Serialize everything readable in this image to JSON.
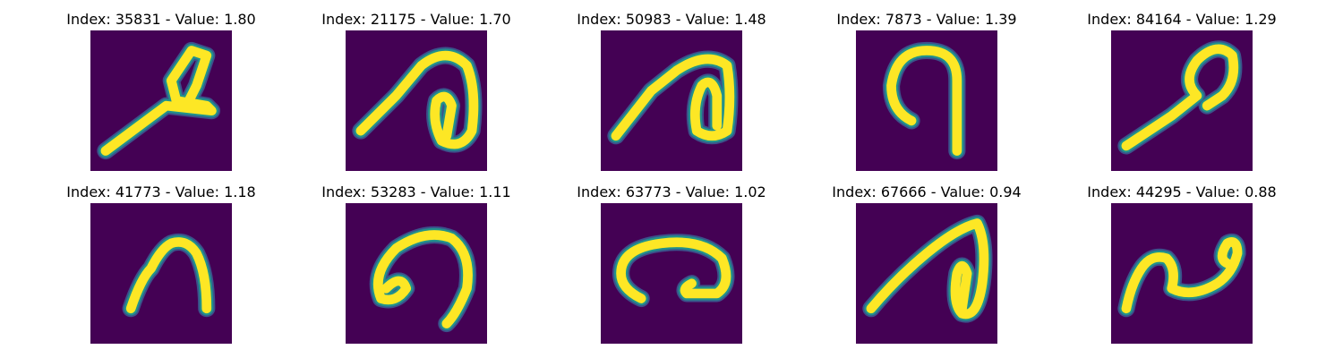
{
  "colors": {
    "background": "#440154",
    "stroke_core": "#fde725",
    "stroke_mid": "#21918c",
    "stroke_edge": "#3b528b"
  },
  "samples": [
    {
      "title": "Index: 35831 - Value: 1.80",
      "index": 35831,
      "value": 1.8
    },
    {
      "title": "Index: 21175 - Value: 1.70",
      "index": 21175,
      "value": 1.7
    },
    {
      "title": "Index: 50983 - Value: 1.48",
      "index": 50983,
      "value": 1.48
    },
    {
      "title": "Index: 7873 - Value: 1.39",
      "index": 7873,
      "value": 1.39
    },
    {
      "title": "Index: 84164 - Value: 1.29",
      "index": 84164,
      "value": 1.29
    },
    {
      "title": "Index: 41773 - Value: 1.18",
      "index": 41773,
      "value": 1.18
    },
    {
      "title": "Index: 53283 - Value: 1.11",
      "index": 53283,
      "value": 1.11
    },
    {
      "title": "Index: 63773 - Value: 1.02",
      "index": 63773,
      "value": 1.02
    },
    {
      "title": "Index: 67666 - Value: 0.94",
      "index": 67666,
      "value": 0.94
    },
    {
      "title": "Index: 44295 - Value: 0.88",
      "index": 44295,
      "value": 0.88
    }
  ]
}
